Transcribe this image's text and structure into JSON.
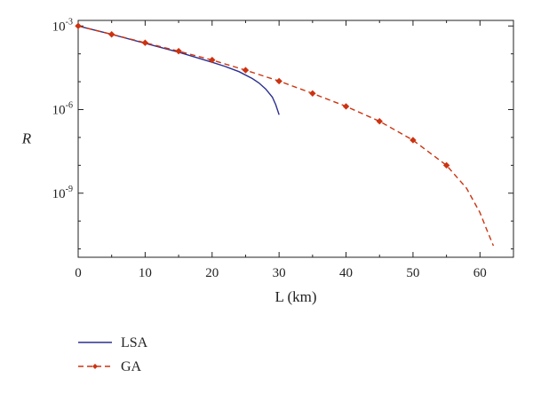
{
  "chart_data": {
    "type": "line",
    "title": "",
    "xlabel": "L (km)",
    "ylabel": "R",
    "y_scale": "log",
    "xlim": [
      0,
      65
    ],
    "ylim_exp": [
      -11.3,
      -2.8
    ],
    "x_ticks": [
      0,
      10,
      20,
      30,
      40,
      50,
      60
    ],
    "x_tick_labels": [
      "0",
      "10",
      "20",
      "30",
      "40",
      "50",
      "60"
    ],
    "y_major_exps": [
      -3,
      -6,
      -9
    ],
    "y_tick_labels": [
      {
        "base": "10",
        "exp": "-3"
      },
      {
        "base": "10",
        "exp": "-6"
      },
      {
        "base": "10",
        "exp": "-9"
      }
    ],
    "grid": false,
    "legend_position": "below-left",
    "series": [
      {
        "name": "LSA",
        "color": "#2b2f8f",
        "dash": "solid",
        "marker": "none",
        "x": [
          0,
          5,
          10,
          15,
          20,
          22,
          24,
          26,
          27,
          28,
          29,
          29.5,
          30
        ],
        "y": [
          0.001,
          0.0005,
          0.00024,
          0.000115,
          5e-05,
          3.5e-05,
          2.3e-05,
          1.3e-05,
          9e-06,
          5.5e-06,
          2.8e-06,
          1.5e-06,
          6.5e-07
        ]
      },
      {
        "name": "GA",
        "color": "#cc3311",
        "dash": "dashed",
        "marker": "diamond",
        "x": [
          0,
          5,
          10,
          15,
          20,
          25,
          30,
          35,
          40,
          45,
          50,
          55,
          58,
          60,
          61,
          62
        ],
        "y": [
          0.001,
          0.0005,
          0.00025,
          0.000125,
          6e-05,
          2.6e-05,
          1.05e-05,
          3.8e-06,
          1.3e-06,
          3.8e-07,
          8e-08,
          1e-08,
          1.5e-09,
          2e-10,
          5e-11,
          1.3e-11
        ],
        "marker_x": [
          0,
          5,
          10,
          15,
          20,
          25,
          30,
          35,
          40,
          45,
          50,
          55
        ]
      }
    ]
  }
}
